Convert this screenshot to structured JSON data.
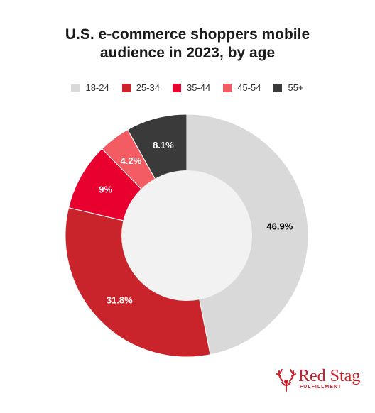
{
  "chart_data": {
    "type": "pie",
    "title_lines": [
      "U.S. e-commerce shoppers mobile",
      "audience in 2023, by age"
    ],
    "legend_position": "top",
    "categories": [
      "18-24",
      "25-34",
      "35-44",
      "45-54",
      "55+"
    ],
    "values": [
      46.9,
      31.8,
      9,
      4.2,
      8.1
    ],
    "labels": [
      "46.9%",
      "31.8%",
      "9%",
      "4.2%",
      "8.1%"
    ],
    "colors": [
      "#d9d9d9",
      "#c9242b",
      "#e8002f",
      "#f25c62",
      "#3a3a3a"
    ],
    "label_colors": [
      "#000000",
      "#ffffff",
      "#ffffff",
      "#ffffff",
      "#ffffff"
    ],
    "donut": true,
    "hole_color": "#f2f2f3"
  },
  "brand": {
    "name": "Red Stag",
    "sub": "FULFILLMENT",
    "color": "#c8202a"
  }
}
